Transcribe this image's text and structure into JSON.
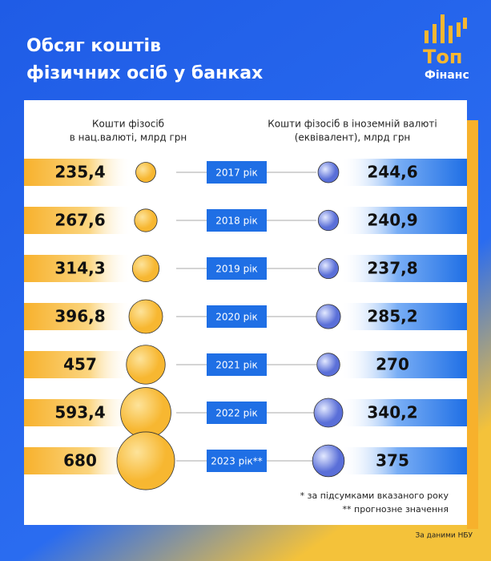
{
  "title_lines": [
    "Обсяг коштів",
    "фізичних осіб у банках"
  ],
  "logo": {
    "top": "Топ",
    "bottom": "Фінанс"
  },
  "chart_data": {
    "type": "paired-bubble",
    "categories": [
      "2017 рік",
      "2018 рік",
      "2019 рік",
      "2020 рік",
      "2021 рік",
      "2022 рік",
      "2023 рік**"
    ],
    "series": [
      {
        "name": [
          "Кошти фізосіб",
          "в нац.валюті, млрд грн"
        ],
        "color": "#f7b731",
        "values": [
          235.4,
          267.6,
          314.3,
          396.8,
          457,
          593.4,
          680
        ],
        "value_labels": [
          "235,4",
          "267,6",
          "314,3",
          "396,8",
          "457",
          "593,4",
          "680"
        ]
      },
      {
        "name": [
          "Кошти фізосіб в іноземній валюті",
          "(еквівалент), млрд грн"
        ],
        "color": "#1f6fe5",
        "values": [
          244.6,
          240.9,
          237.8,
          285.2,
          270,
          340.2,
          375
        ],
        "value_labels": [
          "244,6",
          "240,9",
          "237,8",
          "285,2",
          "270",
          "340,2",
          "375"
        ]
      }
    ]
  },
  "footnotes": [
    "* за підсумками вказаного року",
    "** прогнозне значення"
  ],
  "source": "За даними НБУ"
}
